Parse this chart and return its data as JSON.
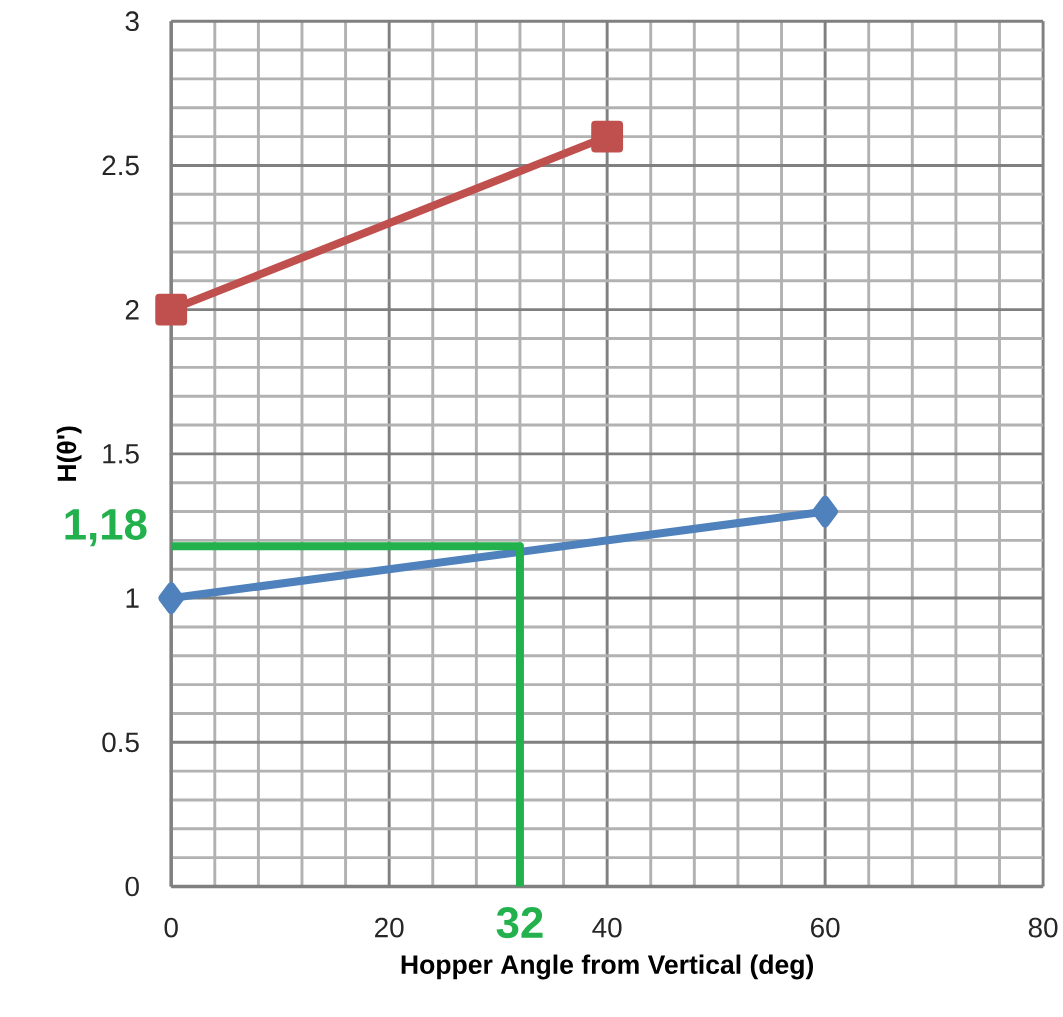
{
  "chart_data": {
    "type": "line",
    "xlabel": "Hopper Angle from Vertical (deg)",
    "ylabel": "H(θ')",
    "series": [
      {
        "color": "#c0504d",
        "x": [
          0,
          40
        ],
        "values": [
          2,
          2.6
        ],
        "marker": "square"
      },
      {
        "color": "#4f81bd",
        "x": [
          0,
          60
        ],
        "values": [
          1,
          1.3
        ],
        "marker": "diamond"
      },
      {
        "color": "#22b14c",
        "x": [
          0,
          32,
          32
        ],
        "values": [
          1.18,
          1.18,
          0
        ],
        "marker": "none"
      }
    ],
    "xlim": [
      0,
      80
    ],
    "ylim": [
      0,
      3
    ],
    "xticks": [
      0,
      20,
      40,
      60,
      80
    ],
    "yticks": [
      0,
      0.5,
      1,
      1.5,
      2,
      2.5,
      3
    ],
    "grid": true,
    "annotations": [
      {
        "text": "1,18",
        "x": 0,
        "y": 1.18
      },
      {
        "text": "32",
        "x": 32,
        "y": 0
      }
    ]
  }
}
